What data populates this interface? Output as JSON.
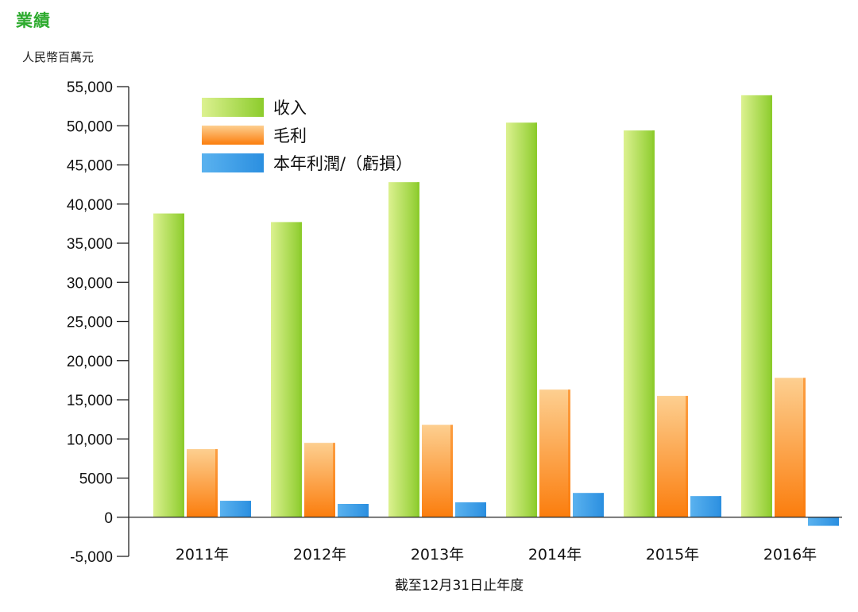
{
  "page": {
    "title": "業績",
    "unit": "人民幣百萬元"
  },
  "chart_data": {
    "type": "bar",
    "title": "",
    "ylabel": "人民幣百萬元",
    "xlabel": "截至12月31日止年度",
    "categories": [
      "2011年",
      "2012年",
      "2013年",
      "2014年",
      "2015年",
      "2016年"
    ],
    "ylim": [
      -5000,
      55000
    ],
    "yticks": [
      -5000,
      0,
      5000,
      10000,
      15000,
      20000,
      25000,
      30000,
      35000,
      40000,
      45000,
      50000,
      55000
    ],
    "ytick_labels": [
      "-5,000",
      "0",
      "5000",
      "10,000",
      "15,000",
      "20,000",
      "25,000",
      "30,000",
      "35,000",
      "40,000",
      "45,000",
      "50,000",
      "55,000"
    ],
    "grid": false,
    "legend_position": "top-left",
    "series": [
      {
        "name": "收入",
        "color": "#8ccc2c",
        "color_light": "#dcf190",
        "values": [
          38800,
          37700,
          42800,
          50400,
          49400,
          53900
        ]
      },
      {
        "name": "毛利",
        "color": "#fb7d0d",
        "color_light": "#fdcf90",
        "values": [
          8700,
          9500,
          11800,
          16300,
          15500,
          17800
        ]
      },
      {
        "name": "本年利潤/（虧損）",
        "color": "#2b8fe0",
        "color_light": "#5ab2ef",
        "values": [
          2100,
          1700,
          1900,
          3100,
          2700,
          -1100
        ]
      }
    ]
  }
}
